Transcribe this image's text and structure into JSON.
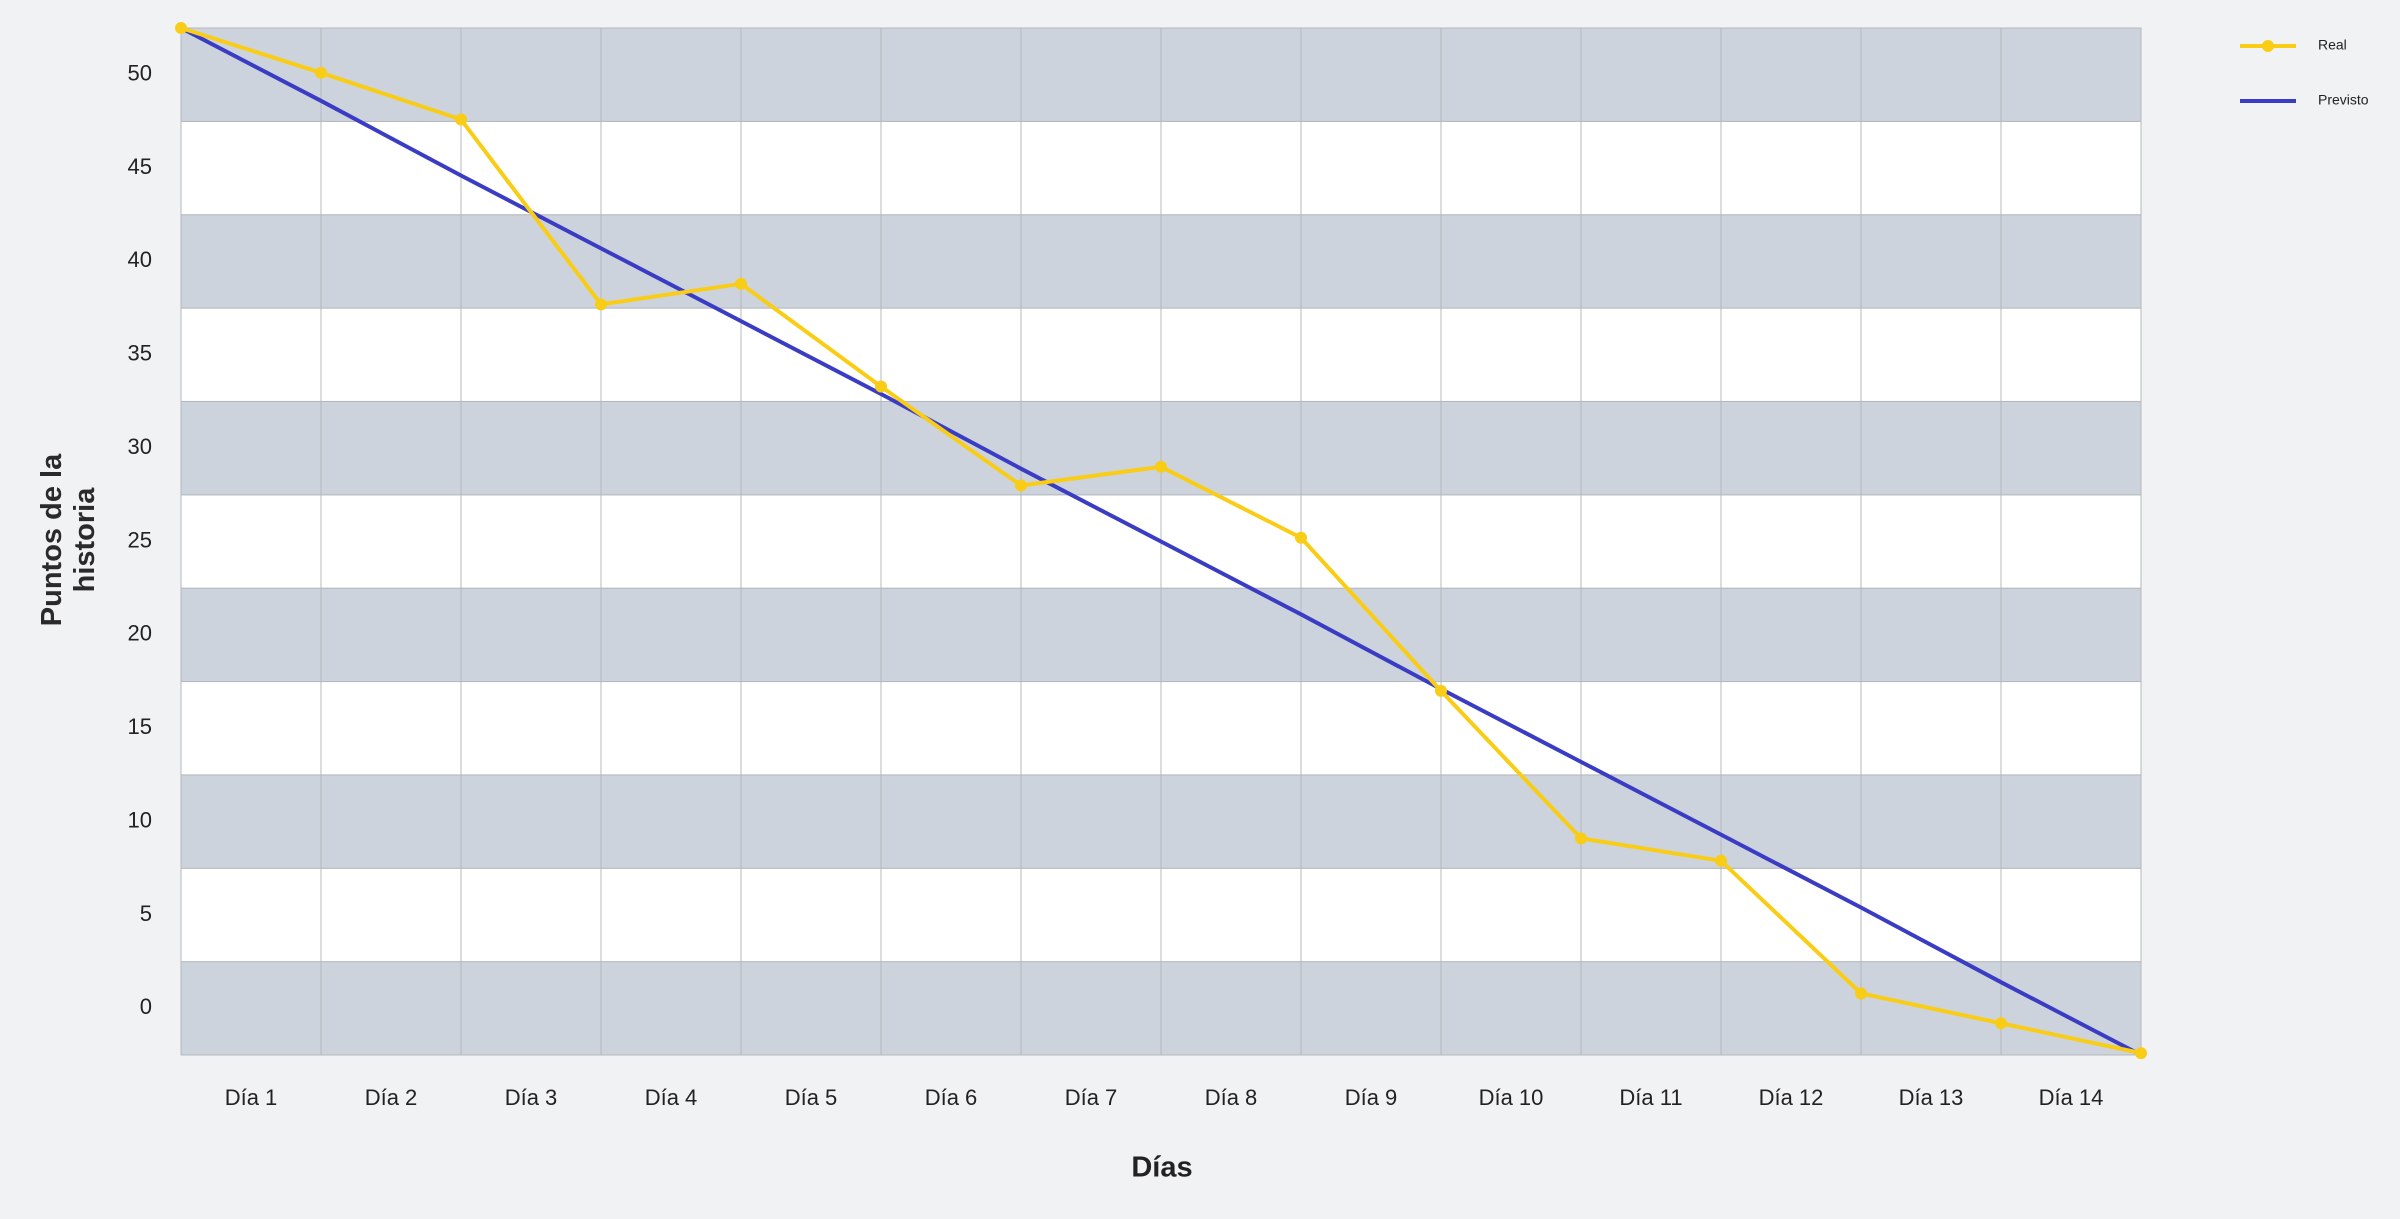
{
  "chart_data": {
    "type": "line",
    "x": [
      0,
      1,
      2,
      3,
      4,
      5,
      6,
      7,
      8,
      9,
      10,
      11,
      12,
      13,
      14
    ],
    "xlim": [
      0,
      14
    ],
    "xticks": [
      {
        "value": 0.5,
        "label": "Día 1"
      },
      {
        "value": 1.5,
        "label": "Día 2"
      },
      {
        "value": 2.5,
        "label": "Día 3"
      },
      {
        "value": 3.5,
        "label": "Día 4"
      },
      {
        "value": 4.5,
        "label": "Día 5"
      },
      {
        "value": 5.5,
        "label": "Día 6"
      },
      {
        "value": 6.5,
        "label": "Día 7"
      },
      {
        "value": 7.5,
        "label": "Día 8"
      },
      {
        "value": 8.5,
        "label": "Día 9"
      },
      {
        "value": 9.5,
        "label": "Día 10"
      },
      {
        "value": 10.5,
        "label": "Día 11"
      },
      {
        "value": 11.5,
        "label": "Día 12"
      },
      {
        "value": 12.5,
        "label": "Día 13"
      },
      {
        "value": 13.5,
        "label": "Día 14"
      }
    ],
    "ylim": [
      -2.5,
      52.5
    ],
    "yticks": [
      0,
      5,
      10,
      15,
      20,
      25,
      30,
      35,
      40,
      45,
      50
    ],
    "xlabel": "Días",
    "ylabel": "Puntos de la historia",
    "grid": true,
    "legend": "top-right",
    "series": [
      {
        "name": "Real",
        "color": "#f9cd15",
        "markers": true,
        "values": [
          52.5,
          50.1,
          47.6,
          37.7,
          38.8,
          33.3,
          28.0,
          29.0,
          25.2,
          17.0,
          9.1,
          7.9,
          0.8,
          -0.8,
          -2.4
        ]
      },
      {
        "name": "Previsto",
        "color": "#3a3dc4",
        "markers": false,
        "values": [
          52.5,
          48.6,
          44.6,
          40.7,
          36.8,
          32.9,
          28.9,
          25.0,
          21.1,
          17.1,
          13.2,
          9.3,
          5.4,
          1.4,
          -2.5
        ]
      }
    ]
  }
}
